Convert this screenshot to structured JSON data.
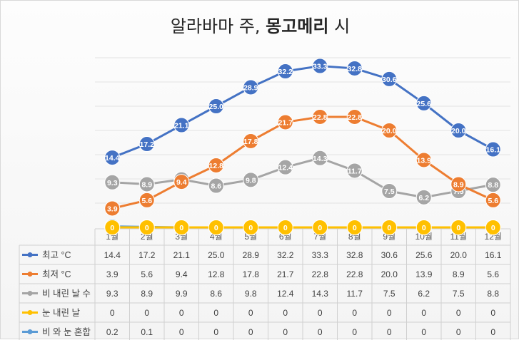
{
  "title": {
    "prefix": "알라바마 주, ",
    "bold": "몽고메리",
    "suffix": " 시"
  },
  "chart_data": {
    "type": "line",
    "title": "알라바마 주, 몽고메리 시",
    "categories": [
      "1월",
      "2월",
      "3월",
      "4월",
      "5월",
      "6월",
      "7월",
      "8월",
      "9월",
      "10월",
      "11월",
      "12월"
    ],
    "ylim": [
      0,
      35
    ],
    "grid": true,
    "legend": "data-table",
    "series": [
      {
        "name": "최고 °C",
        "color": "#4472c4",
        "values": [
          14.4,
          17.2,
          21.1,
          25.0,
          28.9,
          32.2,
          33.3,
          32.8,
          30.6,
          25.6,
          20.0,
          16.1
        ]
      },
      {
        "name": "최저 °C",
        "color": "#ed7d31",
        "values": [
          3.9,
          5.6,
          9.4,
          12.8,
          17.8,
          21.7,
          22.8,
          22.8,
          20.0,
          13.9,
          8.9,
          5.6
        ]
      },
      {
        "name": "비 내린 날 수",
        "color": "#a5a5a5",
        "values": [
          9.3,
          8.9,
          9.9,
          8.6,
          9.8,
          12.4,
          14.3,
          11.7,
          7.5,
          6.2,
          7.5,
          8.8
        ]
      },
      {
        "name": "눈 내린 날",
        "color": "#ffc000",
        "values": [
          0,
          0,
          0,
          0,
          0,
          0,
          0,
          0,
          0,
          0,
          0,
          0
        ]
      },
      {
        "name": "비 와 눈 혼합",
        "color": "#5b9bd5",
        "values": [
          0.2,
          0.1,
          0,
          0,
          0,
          0,
          0,
          0,
          0,
          0,
          0,
          0
        ]
      }
    ]
  }
}
